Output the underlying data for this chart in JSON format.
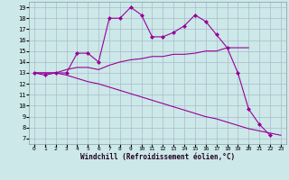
{
  "line1_x": [
    0,
    1,
    2,
    3,
    4,
    5,
    6,
    7,
    8,
    9,
    10,
    11,
    12,
    13,
    14,
    15,
    16,
    17,
    18,
    19,
    20,
    21,
    22
  ],
  "line1_y": [
    13,
    12.8,
    13,
    13,
    14.8,
    14.8,
    14.0,
    18.0,
    18.0,
    19.0,
    18.3,
    16.3,
    16.3,
    16.7,
    17.3,
    18.3,
    17.7,
    16.5,
    15.3,
    13,
    9.7,
    8.3,
    7.3
  ],
  "line2_x": [
    0,
    1,
    2,
    3,
    4,
    5,
    6,
    7,
    8,
    9,
    10,
    11,
    12,
    13,
    14,
    15,
    16,
    17,
    18,
    19,
    20
  ],
  "line2_y": [
    13,
    13,
    13,
    13.3,
    13.5,
    13.5,
    13.3,
    13.7,
    14.0,
    14.2,
    14.3,
    14.5,
    14.5,
    14.7,
    14.7,
    14.8,
    15.0,
    15.0,
    15.3,
    15.3,
    15.3
  ],
  "line3_x": [
    0,
    1,
    2,
    3,
    4,
    5,
    6,
    7,
    8,
    9,
    10,
    11,
    12,
    13,
    14,
    15,
    16,
    17,
    18,
    19,
    20,
    21,
    22,
    23
  ],
  "line3_y": [
    13,
    13,
    13,
    12.8,
    12.5,
    12.2,
    12.0,
    11.7,
    11.4,
    11.1,
    10.8,
    10.5,
    10.2,
    9.9,
    9.6,
    9.3,
    9.0,
    8.8,
    8.5,
    8.2,
    7.9,
    7.7,
    7.5,
    7.3
  ],
  "color": "#990099",
  "background": "#cce8e8",
  "grid_color": "#aabbcc",
  "xlabel": "Windchill (Refroidissement éolien,°C)",
  "xlim": [
    -0.5,
    23.5
  ],
  "ylim": [
    6.5,
    19.5
  ],
  "yticks": [
    7,
    8,
    9,
    10,
    11,
    12,
    13,
    14,
    15,
    16,
    17,
    18,
    19
  ],
  "xticks": [
    0,
    1,
    2,
    3,
    4,
    5,
    6,
    7,
    8,
    9,
    10,
    11,
    12,
    13,
    14,
    15,
    16,
    17,
    18,
    19,
    20,
    21,
    22,
    23
  ],
  "marker": "D",
  "markersize": 2,
  "linewidth": 0.8
}
